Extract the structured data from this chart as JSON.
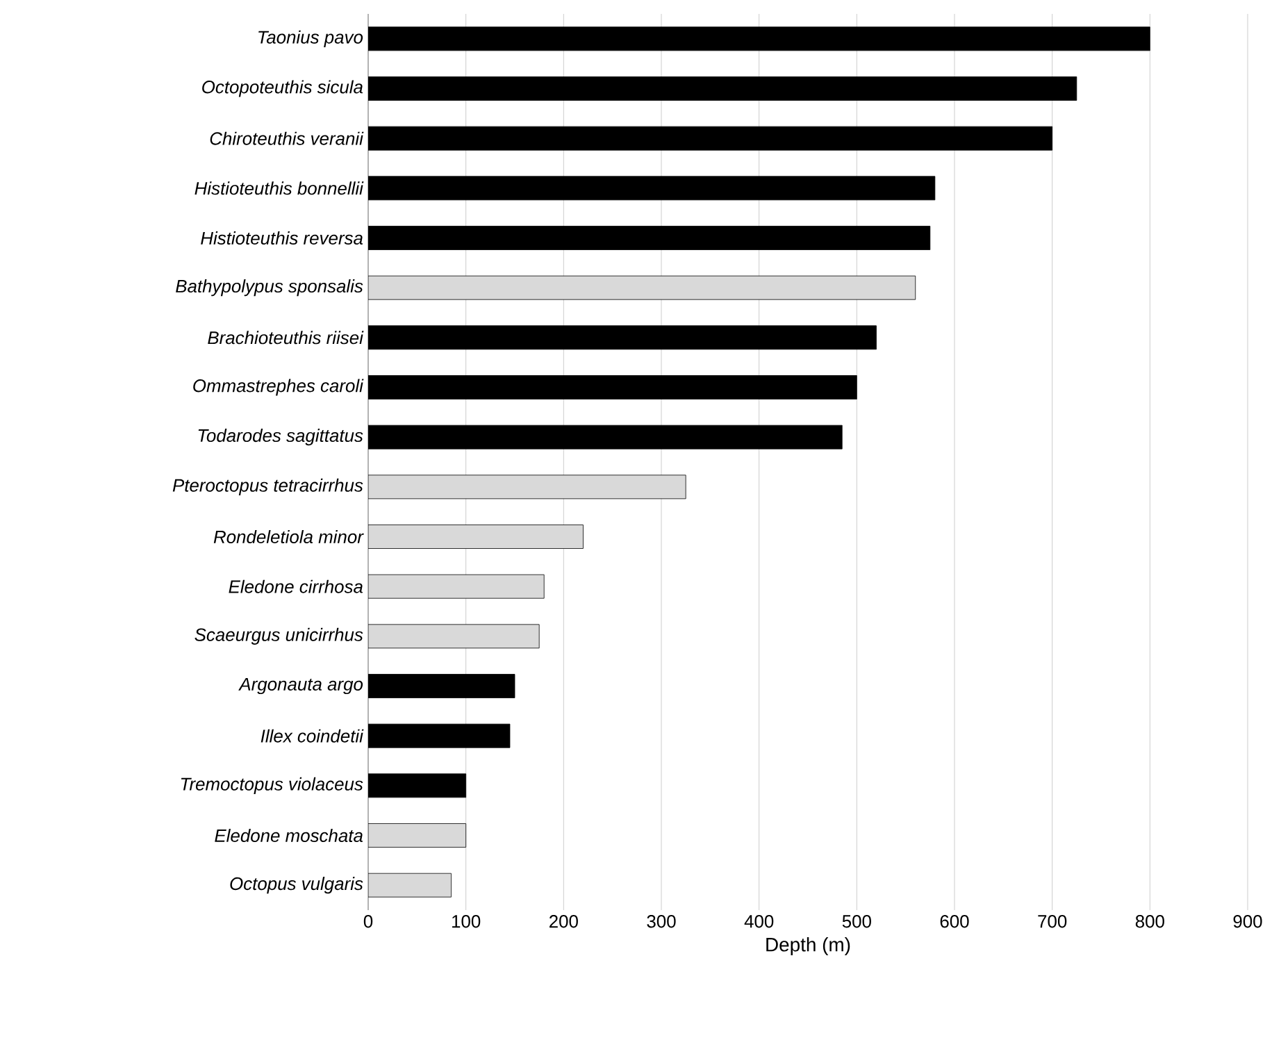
{
  "chart_data": {
    "type": "bar",
    "orientation": "horizontal",
    "xlabel": "Depth (m)",
    "categories": [
      "Taonius pavo",
      "Octopoteuthis sicula",
      "Chiroteuthis veranii",
      "Histioteuthis bonnellii",
      "Histioteuthis reversa",
      "Bathypolypus sponsalis",
      "Brachioteuthis riisei",
      "Ommastrephes caroli",
      "Todarodes sagittatus",
      "Pteroctopus tetracirrhus",
      "Rondeletiola minor",
      "Eledone cirrhosa",
      "Scaeurgus unicirrhus",
      "Argonauta argo",
      "Illex coindetii",
      "Tremoctopus violaceus",
      "Eledone moschata",
      "Octopus vulgaris"
    ],
    "values": [
      800,
      725,
      700,
      580,
      575,
      560,
      520,
      500,
      485,
      325,
      220,
      180,
      175,
      150,
      145,
      100,
      100,
      85
    ],
    "colors": [
      "#000000",
      "#000000",
      "#000000",
      "#000000",
      "#000000",
      "#d9d9d9",
      "#000000",
      "#000000",
      "#000000",
      "#d9d9d9",
      "#d9d9d9",
      "#d9d9d9",
      "#d9d9d9",
      "#000000",
      "#000000",
      "#000000",
      "#d9d9d9",
      "#d9d9d9"
    ],
    "xlim": [
      0,
      900
    ],
    "xticks": [
      0,
      100,
      200,
      300,
      400,
      500,
      600,
      700,
      800,
      900
    ],
    "grid": "x"
  }
}
